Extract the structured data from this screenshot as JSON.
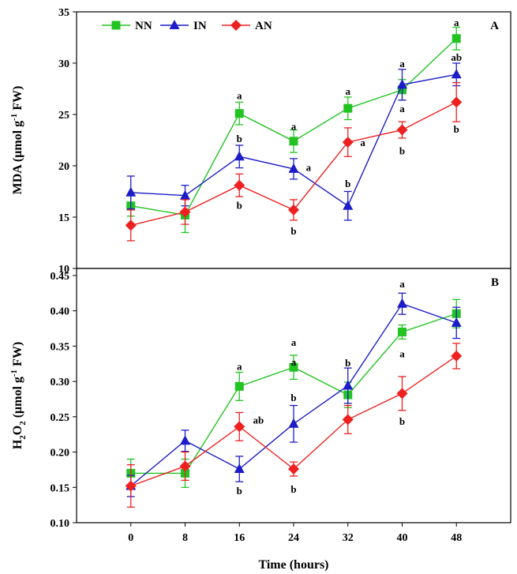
{
  "chart_data": [
    {
      "type": "line",
      "panel": "A",
      "ylabel": "MDA (μmol g-1 FW)",
      "ylabel_main": "MDA (μmol g",
      "ylabel_sup": "-1",
      "ylabel_end": " FW)",
      "xlabel": "",
      "ylim": [
        10,
        35
      ],
      "yticks": [
        "10",
        "15",
        "20",
        "25",
        "30",
        "35"
      ],
      "x": [
        0,
        8,
        16,
        24,
        32,
        40,
        48
      ],
      "legend": [
        "NN",
        "IN",
        "AN"
      ],
      "series": [
        {
          "name": "NN",
          "color": "#22c322",
          "marker": "square",
          "values": [
            16.1,
            15.2,
            25.1,
            22.4,
            25.6,
            27.4,
            32.4
          ],
          "errors": [
            1.0,
            1.7,
            1.1,
            1.1,
            1.1,
            1.0,
            1.1
          ]
        },
        {
          "name": "IN",
          "color": "#1c1cc8",
          "marker": "triangle",
          "values": [
            17.4,
            17.1,
            20.9,
            19.7,
            16.1,
            27.9,
            28.9
          ],
          "errors": [
            1.6,
            1.0,
            1.1,
            1.0,
            1.4,
            1.5,
            1.1
          ]
        },
        {
          "name": "AN",
          "color": "#ee2020",
          "marker": "diamond",
          "values": [
            14.2,
            15.5,
            18.1,
            15.7,
            22.3,
            23.5,
            26.2
          ],
          "errors": [
            1.5,
            1.2,
            1.1,
            1.0,
            1.4,
            0.8,
            1.9
          ]
        }
      ],
      "annotations": [
        {
          "x": 16,
          "y": 26.9,
          "text": "a"
        },
        {
          "x": 16,
          "y": 22.7,
          "text": "b"
        },
        {
          "x": 16,
          "y": 16.2,
          "text": "b"
        },
        {
          "x": 24,
          "y": 23.9,
          "text": "a"
        },
        {
          "x": 26.2,
          "y": 19.9,
          "text": "a"
        },
        {
          "x": 24,
          "y": 13.7,
          "text": "b"
        },
        {
          "x": 32,
          "y": 27.3,
          "text": "a"
        },
        {
          "x": 34.2,
          "y": 22.3,
          "text": "a"
        },
        {
          "x": 32,
          "y": 18.3,
          "text": "b"
        },
        {
          "x": 40,
          "y": 30.0,
          "text": "a"
        },
        {
          "x": 40,
          "y": 25.6,
          "text": "a"
        },
        {
          "x": 40,
          "y": 21.5,
          "text": "b"
        },
        {
          "x": 48,
          "y": 34.0,
          "text": "a"
        },
        {
          "x": 48,
          "y": 30.6,
          "text": "ab"
        },
        {
          "x": 48,
          "y": 23.6,
          "text": "b"
        }
      ]
    },
    {
      "type": "line",
      "panel": "B",
      "ylabel": "H2O2 (μmol g-1 FW)",
      "ylabel_main": "H",
      "ylabel_sub": "2",
      "ylabel_mid": "O",
      "ylabel_sub2": "2",
      "ylabel_mid2": " (μmol g",
      "ylabel_sup": "-1",
      "ylabel_end": " FW)",
      "xlabel": "Time (hours)",
      "ylim": [
        0.1,
        0.46
      ],
      "yticks": [
        "0.10",
        "0.15",
        "0.20",
        "0.25",
        "0.30",
        "0.35",
        "0.40",
        "0.45"
      ],
      "xticks": [
        "0",
        "8",
        "16",
        "24",
        "32",
        "40",
        "48"
      ],
      "x": [
        0,
        8,
        16,
        24,
        32,
        40,
        48
      ],
      "series": [
        {
          "name": "NN",
          "color": "#22c322",
          "marker": "square",
          "values": [
            0.17,
            0.17,
            0.293,
            0.32,
            0.281,
            0.37,
            0.396
          ],
          "errors": [
            0.02,
            0.02,
            0.02,
            0.017,
            0.018,
            0.01,
            0.02
          ]
        },
        {
          "name": "IN",
          "color": "#1c1cc8",
          "marker": "triangle",
          "values": [
            0.152,
            0.216,
            0.176,
            0.24,
            0.294,
            0.41,
            0.383
          ],
          "errors": [
            0.015,
            0.015,
            0.018,
            0.026,
            0.025,
            0.015,
            0.022
          ]
        },
        {
          "name": "AN",
          "color": "#ee2020",
          "marker": "diamond",
          "values": [
            0.152,
            0.18,
            0.236,
            0.176,
            0.246,
            0.283,
            0.336
          ],
          "errors": [
            0.03,
            0.02,
            0.02,
            0.01,
            0.02,
            0.024,
            0.018
          ]
        }
      ],
      "annotations": [
        {
          "x": 16,
          "y": 0.322,
          "text": "a"
        },
        {
          "x": 18.8,
          "y": 0.246,
          "text": "ab"
        },
        {
          "x": 16,
          "y": 0.146,
          "text": "b"
        },
        {
          "x": 24,
          "y": 0.356,
          "text": "a"
        },
        {
          "x": 24,
          "y": 0.328,
          "text": "a"
        },
        {
          "x": 24,
          "y": 0.278,
          "text": "b"
        },
        {
          "x": 24,
          "y": 0.148,
          "text": "b"
        },
        {
          "x": 32,
          "y": 0.327,
          "text": "b"
        },
        {
          "x": 40,
          "y": 0.439,
          "text": "a"
        },
        {
          "x": 40,
          "y": 0.34,
          "text": "a"
        },
        {
          "x": 40,
          "y": 0.244,
          "text": "b"
        }
      ]
    }
  ]
}
